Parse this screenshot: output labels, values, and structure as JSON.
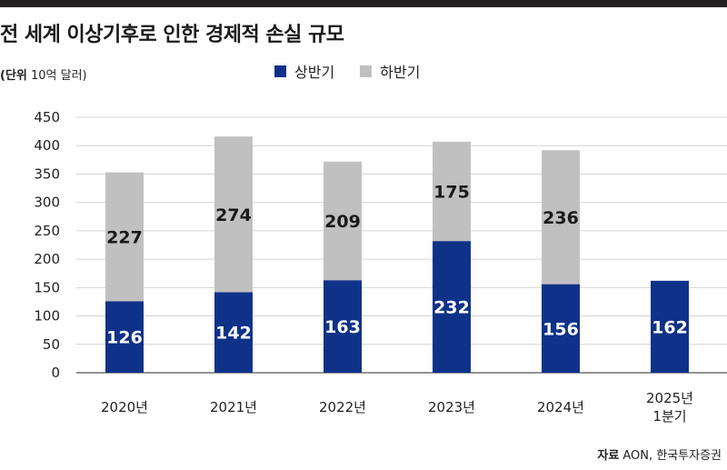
{
  "header": {
    "title": "전 세계 이상기후로 인한 경제적 손실  규모",
    "unit_bold": "(단위",
    "unit_rest": " 10억 달러)"
  },
  "footer": {
    "source_label": "자료",
    "source_text": "AON, 한국투자증권"
  },
  "colors": {
    "h1": "#0f3289",
    "h2": "#c0c0c0",
    "topbar": "#231f20"
  },
  "chart_data": {
    "type": "bar",
    "stacked": true,
    "title": "전 세계 이상기후로 인한 경제적 손실  규모",
    "unit": "(단위 10억 달러)",
    "categories": [
      "2020년",
      "2021년",
      "2022년",
      "2023년",
      "2024년",
      "2025년\n1분기"
    ],
    "series": [
      {
        "name": "상반기",
        "values": [
          126,
          142,
          163,
          232,
          156,
          162
        ]
      },
      {
        "name": "하반기",
        "values": [
          227,
          274,
          209,
          175,
          236,
          null
        ]
      }
    ],
    "ylim": [
      0,
      450
    ],
    "yticks": [
      0,
      50,
      100,
      150,
      200,
      250,
      300,
      350,
      400,
      450
    ],
    "grid": true,
    "legend": "top-center"
  }
}
